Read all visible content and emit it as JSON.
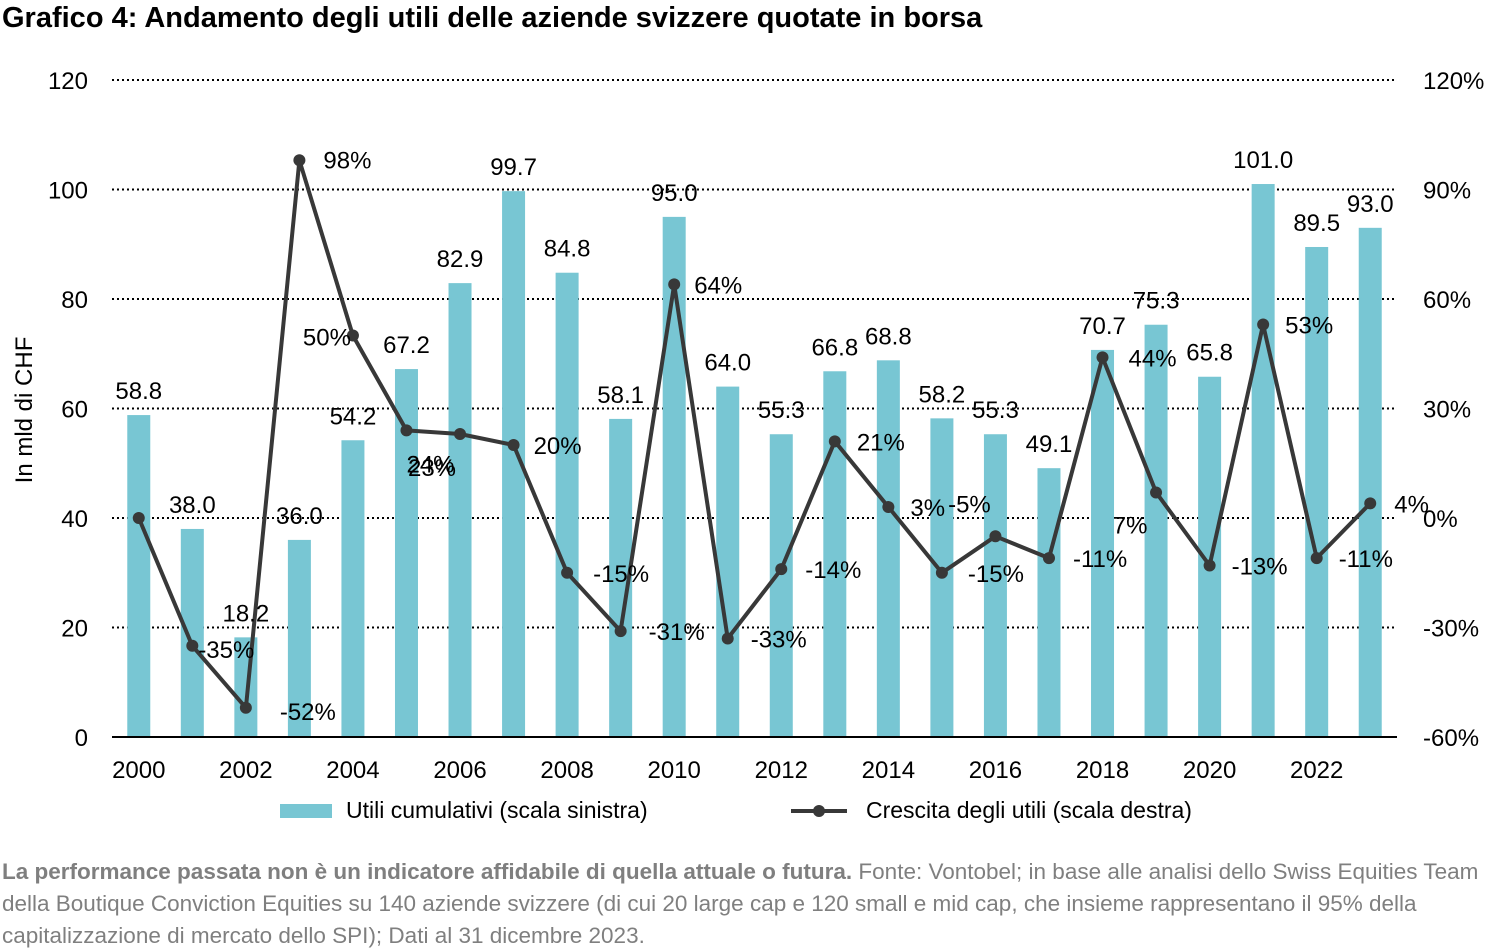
{
  "title": "Grafico 4: Andamento degli utili delle aziende svizzere quotate in borsa",
  "footnote": {
    "bold": "La performance passata non è un indicatore affidabile di quella attuale o futura.",
    "text": " Fonte: Vontobel; in base alle analisi dello Swiss Equities Team della Boutique Conviction Equities su 140 aziende svizzere (di cui 20 large cap e 120 small e mid cap, che insieme rappresentano il 95% della capitalizzazione di mercato dello SPI); Dati al 31 dicembre 2023."
  },
  "chart_data": {
    "type": "bar",
    "years": [
      2000,
      2001,
      2002,
      2003,
      2004,
      2005,
      2006,
      2007,
      2008,
      2009,
      2010,
      2011,
      2012,
      2013,
      2014,
      2015,
      2016,
      2017,
      2018,
      2019,
      2020,
      2021,
      2022,
      2023
    ],
    "x_tick_labels": [
      "2000",
      "2002",
      "2004",
      "2006",
      "2008",
      "2010",
      "2012",
      "2014",
      "2016",
      "2018",
      "2020",
      "2022"
    ],
    "ylabel": "In mld di CHF",
    "ylim": [
      0,
      120
    ],
    "y_ticks": [
      "0",
      "20",
      "40",
      "60",
      "80",
      "100",
      "120"
    ],
    "y2lim": [
      -0.6,
      1.2
    ],
    "y2_ticks": [
      "-60%",
      "-30%",
      "0%",
      "30%",
      "60%",
      "90%",
      "120%"
    ],
    "grid": "dotted",
    "legend_position": "bottom",
    "series": [
      {
        "name": "Utili cumulativi (scala sinistra)",
        "type": "bar",
        "axis": "left",
        "color": "#78c6d3",
        "values": [
          58.8,
          38.0,
          18.2,
          36.0,
          54.2,
          67.2,
          82.9,
          99.7,
          84.8,
          58.1,
          95.0,
          64.0,
          55.3,
          66.8,
          68.8,
          58.2,
          55.3,
          49.1,
          70.7,
          75.3,
          65.8,
          101.0,
          89.5,
          93.0
        ],
        "labels": [
          "58.8",
          "38.0",
          "18.2",
          "36.0",
          "54.2",
          "67.2",
          "82.9",
          "99.7",
          "84.8",
          "58.1",
          "95.0",
          "64.0",
          "55.3",
          "66.8",
          "68.8",
          "58.2",
          "55.3",
          "49.1",
          "70.7",
          "75.3",
          "65.8",
          "101.0",
          "89.5",
          "93.0"
        ]
      },
      {
        "name": "Crescita degli utili (scala destra)",
        "type": "line",
        "axis": "right",
        "color": "#383838",
        "values": [
          0.0,
          -0.35,
          -0.52,
          0.98,
          0.5,
          0.24,
          0.23,
          0.2,
          -0.15,
          -0.31,
          0.64,
          -0.33,
          -0.14,
          0.21,
          0.03,
          -0.15,
          -0.05,
          -0.11,
          0.44,
          0.07,
          -0.13,
          0.53,
          -0.11,
          0.04
        ],
        "labels": [
          "",
          "-35%",
          "-52%",
          "98%",
          "50%",
          "24%",
          "23%",
          "20%",
          "-15%",
          "-31%",
          "64%",
          "-33%",
          "-14%",
          "21%",
          "3%",
          "-15%",
          "-5%",
          "-11%",
          "44%",
          "7%",
          "-13%",
          "53%",
          "-11%",
          "4%"
        ]
      }
    ]
  }
}
